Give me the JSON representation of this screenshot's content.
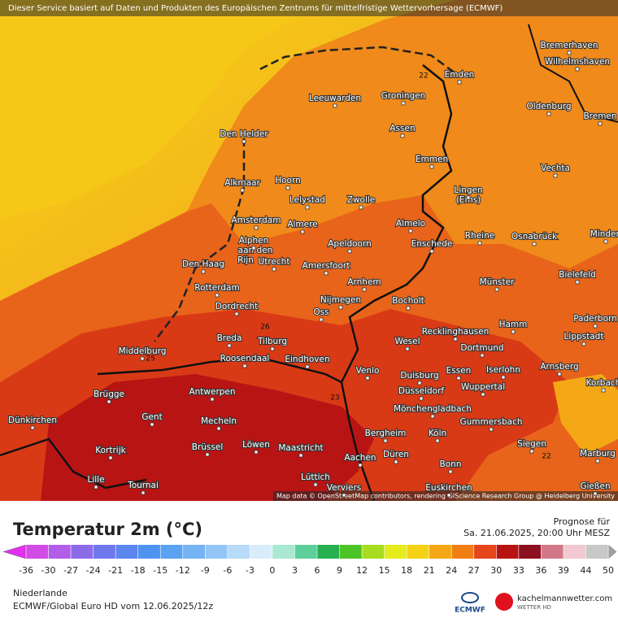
{
  "header": {
    "notice": "Dieser Service basiert auf Daten und Produkten des Europäischen Zentrums für mittelfristige Wettervorhersage (ECMWF)"
  },
  "map": {
    "cities": [
      "Bremerhaven",
      "Wilhelmshaven",
      "Emden",
      "Groningen",
      "Leeuwarden",
      "Oldenburg",
      "Bremen",
      "Den Helder",
      "Assen",
      "Emmen",
      "Vechta",
      "Alkmaar",
      "Hoorn",
      "Lingen",
      "(Ems)",
      "Lelystad",
      "Zwolle",
      "Almelo",
      "Amsterdam",
      "Almere",
      "Rheine",
      "Osnabrück",
      "Minden",
      "Alphen",
      "aan den",
      "Rijn",
      "Apeldoorn",
      "Enschede",
      "Den Haag",
      "Utrecht",
      "Amersfoort",
      "Bielefeld",
      "Arnhem",
      "Münster",
      "Rotterdam",
      "Nijmegen",
      "Bocholt",
      "Dordrecht",
      "Oss",
      "Paderborn",
      "Hamm",
      "Recklinghausen",
      "Lippstadt",
      "Breda",
      "Tilburg",
      "Wesel",
      "Middelburg",
      "Roosendaal",
      "Dortmund",
      "Eindhoven",
      "Arnsberg",
      "Essen",
      "Iserlohn",
      "Venlo",
      "Duisburg",
      "Wuppertal",
      "Korbach",
      "Brügge",
      "Antwerpen",
      "Düsseldorf",
      "Mönchengladbach",
      "Dünkirchen",
      "Gent",
      "Mecheln",
      "Gummersbach",
      "Kortrijk",
      "Bergheim",
      "Köln",
      "Brüssel",
      "Löwen",
      "Maastricht",
      "Siegen",
      "Marburg",
      "Düren",
      "Aachen",
      "Bonn",
      "Lille",
      "Tournai",
      "Lüttich",
      "Gießen",
      "Verviers",
      "Euskirchen"
    ],
    "isotherm_labels": [
      22,
      26,
      25,
      23,
      22
    ],
    "attribution": "Map data © OpenStreetMap contributors, rendering GIScience Research Group @ Heidelberg University"
  },
  "legend": {
    "title": "Temperatur 2m (°C)",
    "forecast_label": "Prognose für",
    "forecast_time": "Sa. 21.06.2025, 20:00 Uhr MESZ",
    "ticks": [
      -36,
      -30,
      -27,
      -24,
      -21,
      -18,
      -15,
      -12,
      -9,
      -6,
      -3,
      0,
      3,
      6,
      9,
      12,
      15,
      18,
      21,
      24,
      27,
      30,
      33,
      36,
      39,
      44,
      50
    ],
    "colors": [
      "#d24be6",
      "#b25ee8",
      "#8d6ae8",
      "#6f78ec",
      "#5a86ee",
      "#4f93f0",
      "#5aa2f2",
      "#74b3f4",
      "#93c6f6",
      "#b7dbf8",
      "#d8ecfa",
      "#a9e8d2",
      "#5ccf9a",
      "#26b050",
      "#4cc428",
      "#a8dc1e",
      "#e6ec1c",
      "#f6d214",
      "#f4a816",
      "#f07e14",
      "#e6461a",
      "#b81414",
      "#8c1020",
      "#d27888",
      "#f2c8d2",
      "#c8c8c8"
    ]
  },
  "footer": {
    "region": "Niederlande",
    "model": "ECMWF/Global Euro HD vom  12.06.2025/12z",
    "ecmwf_logo": "ECMWF",
    "site": "kachelmannwetter.com",
    "site_sub": "WETTER HD"
  }
}
